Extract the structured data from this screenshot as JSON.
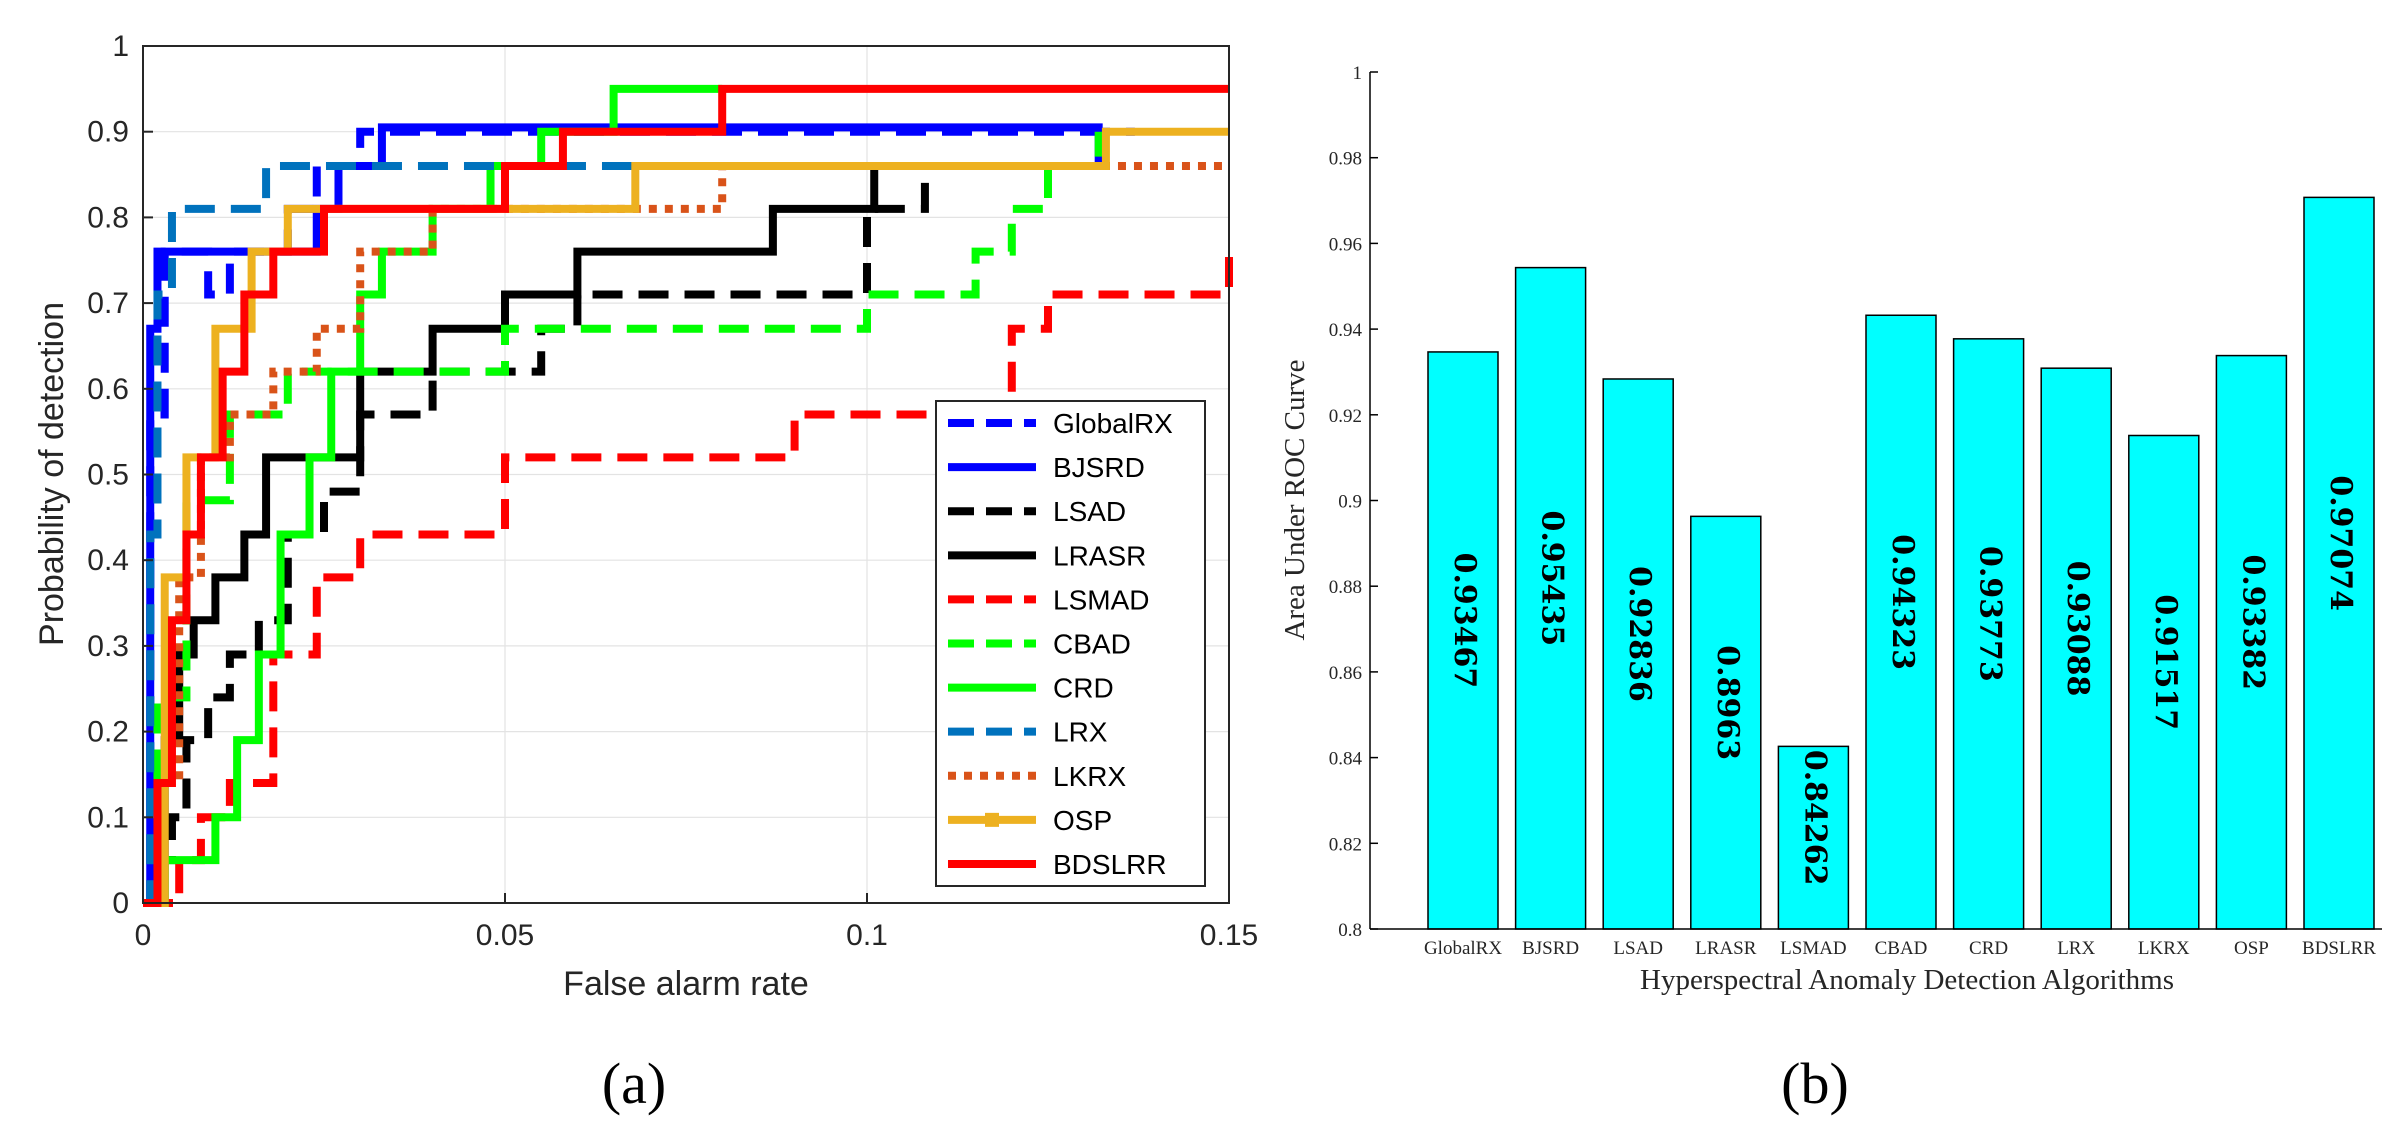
{
  "chart_data": [
    {
      "type": "line",
      "panel": "(a)",
      "xlabel": "False alarm rate",
      "ylabel": "Probability of detection",
      "xlim": [
        0,
        0.15
      ],
      "ylim": [
        0,
        1
      ],
      "xticks": [
        0,
        0.05,
        0.1,
        0.15
      ],
      "xtick_labels": [
        "0",
        "0.05",
        "0.1",
        "0.15"
      ],
      "yticks": [
        0,
        0.1,
        0.2,
        0.3,
        0.4,
        0.5,
        0.6,
        0.7,
        0.8,
        0.9,
        1
      ],
      "ytick_labels": [
        "0",
        "0.1",
        "0.2",
        "0.3",
        "0.4",
        "0.5",
        "0.6",
        "0.7",
        "0.8",
        "0.9",
        "1"
      ],
      "grid": true,
      "legend_position": "bottom-right",
      "series": [
        {
          "name": "GlobalRX",
          "color": "#0000ff",
          "style": "dashed",
          "x": [
            0,
            0.001,
            0.003,
            0.009,
            0.012,
            0.02,
            0.024,
            0.03,
            0.06,
            0.1,
            0.137
          ],
          "y": [
            0,
            0.57,
            0.76,
            0.71,
            0.76,
            0.81,
            0.86,
            0.9,
            0.9,
            0.9,
            0.9
          ]
        },
        {
          "name": "BJSRD",
          "color": "#0000ff",
          "style": "solid",
          "x": [
            0,
            0.001,
            0.002,
            0.006,
            0.014,
            0.024,
            0.027,
            0.033,
            0.06,
            0.132
          ],
          "y": [
            0,
            0.67,
            0.76,
            0.76,
            0.76,
            0.81,
            0.86,
            0.905,
            0.905,
            0.86
          ]
        },
        {
          "name": "LSAD",
          "color": "#000000",
          "style": "dashed",
          "x": [
            0,
            0.002,
            0.004,
            0.006,
            0.009,
            0.012,
            0.016,
            0.02,
            0.025,
            0.03,
            0.04,
            0.05,
            0.055,
            0.06,
            0.08,
            0.097,
            0.1,
            0.108
          ],
          "y": [
            0,
            0.05,
            0.1,
            0.19,
            0.24,
            0.29,
            0.33,
            0.43,
            0.48,
            0.57,
            0.62,
            0.62,
            0.67,
            0.71,
            0.71,
            0.71,
            0.81,
            0.86
          ]
        },
        {
          "name": "LRASR",
          "color": "#000000",
          "style": "solid",
          "x": [
            0,
            0.003,
            0.005,
            0.007,
            0.01,
            0.014,
            0.017,
            0.022,
            0.03,
            0.04,
            0.05,
            0.06,
            0.07,
            0.087,
            0.101
          ],
          "y": [
            0,
            0.19,
            0.29,
            0.33,
            0.38,
            0.43,
            0.52,
            0.52,
            0.62,
            0.67,
            0.71,
            0.76,
            0.76,
            0.81,
            0.86
          ]
        },
        {
          "name": "LSMAD",
          "color": "#ff0000",
          "style": "dashed",
          "x": [
            0,
            0.005,
            0.008,
            0.012,
            0.018,
            0.024,
            0.03,
            0.04,
            0.05,
            0.06,
            0.08,
            0.09,
            0.1,
            0.117,
            0.12,
            0.125,
            0.15
          ],
          "y": [
            0,
            0.05,
            0.1,
            0.14,
            0.29,
            0.38,
            0.43,
            0.43,
            0.52,
            0.52,
            0.52,
            0.57,
            0.57,
            0.57,
            0.67,
            0.71,
            0.76
          ]
        },
        {
          "name": "CBAD",
          "color": "#00ff00",
          "style": "dashed",
          "x": [
            0,
            0.002,
            0.006,
            0.012,
            0.02,
            0.03,
            0.04,
            0.05,
            0.06,
            0.08,
            0.1,
            0.11,
            0.115,
            0.12,
            0.125,
            0.132
          ],
          "y": [
            0,
            0.24,
            0.47,
            0.57,
            0.62,
            0.62,
            0.62,
            0.67,
            0.67,
            0.67,
            0.71,
            0.71,
            0.76,
            0.81,
            0.86,
            0.9
          ]
        },
        {
          "name": "CRD",
          "color": "#00ff00",
          "style": "solid",
          "x": [
            0,
            0.003,
            0.01,
            0.013,
            0.016,
            0.019,
            0.023,
            0.026,
            0.03,
            0.033,
            0.04,
            0.048,
            0.055,
            0.065,
            0.08
          ],
          "y": [
            0,
            0.05,
            0.1,
            0.19,
            0.29,
            0.43,
            0.52,
            0.62,
            0.71,
            0.76,
            0.81,
            0.86,
            0.9,
            0.95,
            0.95
          ]
        },
        {
          "name": "LRX",
          "color": "#0072bd",
          "style": "dashed",
          "x": [
            0,
            0.001,
            0.002,
            0.004,
            0.006,
            0.012,
            0.017,
            0.03,
            0.05,
            0.07,
            0.1,
            0.133
          ],
          "y": [
            0,
            0.43,
            0.71,
            0.81,
            0.81,
            0.81,
            0.86,
            0.86,
            0.86,
            0.86,
            0.86,
            0.86
          ]
        },
        {
          "name": "LKRX",
          "color": "#d95319",
          "style": "dotted",
          "x": [
            0,
            0.002,
            0.005,
            0.008,
            0.012,
            0.018,
            0.024,
            0.03,
            0.04,
            0.05,
            0.07,
            0.08,
            0.09,
            0.15
          ],
          "y": [
            0,
            0.14,
            0.38,
            0.52,
            0.57,
            0.62,
            0.67,
            0.76,
            0.81,
            0.81,
            0.81,
            0.86,
            0.86,
            0.86
          ]
        },
        {
          "name": "OSP",
          "color": "#edb120",
          "style": "solid-marker",
          "x": [
            0,
            0.003,
            0.006,
            0.01,
            0.015,
            0.02,
            0.03,
            0.05,
            0.068,
            0.1,
            0.133,
            0.15
          ],
          "y": [
            0,
            0.38,
            0.52,
            0.67,
            0.76,
            0.81,
            0.81,
            0.81,
            0.86,
            0.86,
            0.9,
            0.9
          ]
        },
        {
          "name": "BDSLRR",
          "color": "#ff0000",
          "style": "solid",
          "x": [
            0,
            0.002,
            0.004,
            0.006,
            0.008,
            0.011,
            0.014,
            0.018,
            0.025,
            0.035,
            0.05,
            0.058,
            0.065,
            0.08,
            0.1,
            0.15
          ],
          "y": [
            0,
            0.14,
            0.33,
            0.43,
            0.52,
            0.62,
            0.71,
            0.76,
            0.81,
            0.81,
            0.86,
            0.9,
            0.9,
            0.95,
            0.95,
            0.95
          ]
        }
      ]
    },
    {
      "type": "bar",
      "panel": "(b)",
      "xlabel": "Hyperspectral Anomaly Detection Algorithms",
      "ylabel": "Area Under ROC Curve",
      "categories": [
        "GlobalRX",
        "BJSRD",
        "LSAD",
        "LRASR",
        "LSMAD",
        "CBAD",
        "CRD",
        "LRX",
        "LKRX",
        "OSP",
        "BDSLRR"
      ],
      "values": [
        0.93467,
        0.95435,
        0.92836,
        0.8963,
        0.84262,
        0.94323,
        0.93773,
        0.93088,
        0.91517,
        0.93382,
        0.97074
      ],
      "value_labels": [
        "0.93467",
        "0.95435",
        "0.92836",
        "0.8963",
        "0.84262",
        "0.94323",
        "0.93773",
        "0.93088",
        "0.91517",
        "0.93382",
        "0.97074"
      ],
      "ylim": [
        0.8,
        1
      ],
      "yticks": [
        0.8,
        0.82,
        0.84,
        0.86,
        0.88,
        0.9,
        0.92,
        0.94,
        0.96,
        0.98,
        1
      ],
      "ytick_labels": [
        "0.8",
        "0.82",
        "0.84",
        "0.86",
        "0.88",
        "0.9",
        "0.92",
        "0.94",
        "0.96",
        "0.98",
        "1"
      ],
      "bar_color": "#00ffff"
    }
  ],
  "captions": {
    "a": "(a)",
    "b": "(b)"
  }
}
